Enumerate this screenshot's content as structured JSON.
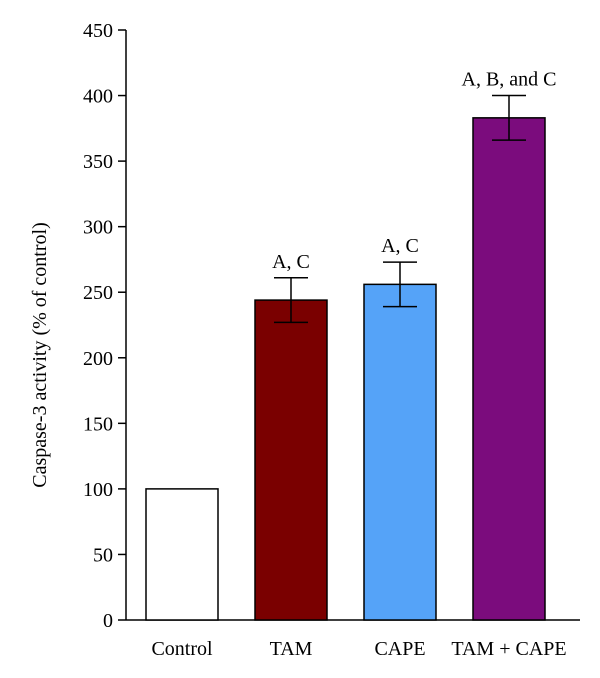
{
  "chart_data": {
    "type": "bar",
    "title": "",
    "xlabel": "",
    "ylabel": "Caspase-3 activity (% of control)",
    "ylim": [
      0,
      450
    ],
    "yticks": [
      0,
      50,
      100,
      150,
      200,
      250,
      300,
      350,
      400,
      450
    ],
    "grid": false,
    "categories": [
      "Control",
      "TAM",
      "CAPE",
      "TAM + CAPE"
    ],
    "values": [
      100,
      244,
      256,
      383
    ],
    "errors": [
      0,
      17,
      17,
      17
    ],
    "annotations": [
      "",
      "A, C",
      "A, C",
      "A, B, and C"
    ],
    "colors": [
      "#ffffff",
      "#7a0000",
      "#55a3f8",
      "#7b0c7d"
    ]
  }
}
